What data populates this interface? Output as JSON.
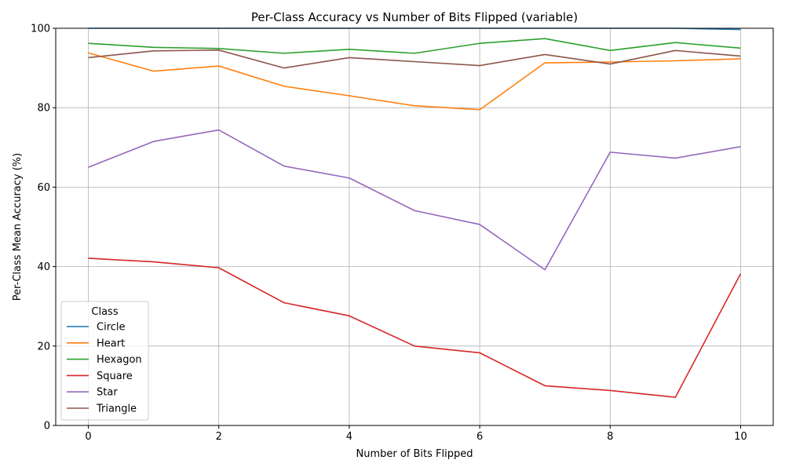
{
  "chart_data": {
    "type": "line",
    "title": "Per-Class Accuracy vs Number of Bits Flipped (variable)",
    "xlabel": "Number of Bits Flipped",
    "ylabel": "Per-Class Mean Accuracy (%)",
    "xlim": [
      -0.5,
      10.5
    ],
    "ylim": [
      0,
      100
    ],
    "xticks": [
      0,
      2,
      4,
      6,
      8,
      10
    ],
    "yticks": [
      0,
      20,
      40,
      60,
      80,
      100
    ],
    "grid": true,
    "legend": {
      "title": "Class",
      "placement": "bottom-left"
    },
    "x": [
      0,
      1,
      2,
      3,
      4,
      5,
      6,
      7,
      8,
      9,
      10
    ],
    "series": [
      {
        "name": "Circle",
        "color": "#1f77b4",
        "values": [
          100,
          100,
          100,
          100,
          100,
          100,
          100,
          100,
          100,
          100,
          99.7
        ]
      },
      {
        "name": "Heart",
        "color": "#ff7f0e",
        "values": [
          93.8,
          89.2,
          90.5,
          85.4,
          83.0,
          80.5,
          79.5,
          91.3,
          91.5,
          91.8,
          92.3
        ]
      },
      {
        "name": "Hexagon",
        "color": "#2ca02c",
        "values": [
          96.2,
          95.2,
          94.9,
          93.7,
          94.7,
          93.7,
          96.2,
          97.4,
          94.4,
          96.4,
          95.0
        ]
      },
      {
        "name": "Square",
        "color": "#d62728",
        "values": [
          42.1,
          41.2,
          39.7,
          30.9,
          27.6,
          20.0,
          18.3,
          10.0,
          8.8,
          7.1,
          38.2
        ]
      },
      {
        "name": "Star",
        "color": "#9467bd",
        "values": [
          65.0,
          71.5,
          74.4,
          65.3,
          62.3,
          54.1,
          50.6,
          39.2,
          68.8,
          67.3,
          70.2
        ]
      },
      {
        "name": "Triangle",
        "color": "#8c564b",
        "values": [
          92.6,
          94.3,
          94.5,
          90.0,
          92.6,
          91.6,
          90.6,
          93.4,
          91.0,
          94.4,
          93.0
        ]
      }
    ]
  }
}
